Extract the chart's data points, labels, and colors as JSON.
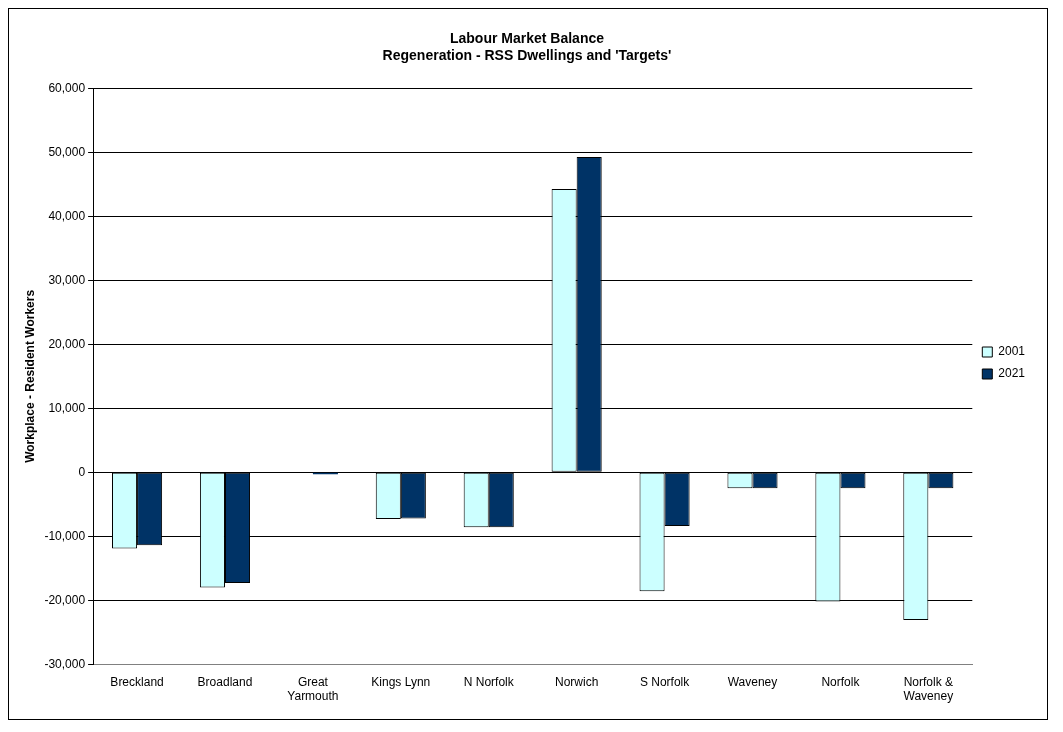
{
  "chart_data": {
    "type": "bar",
    "title": "Labour Market Balance",
    "subtitle": "Regeneration - RSS Dwellings and 'Targets'",
    "ylabel": "Workplace - Resident Workers",
    "categories": [
      "Breckland",
      "Broadland",
      "Great Yarmouth",
      "Kings Lynn",
      "N Norfolk",
      "Norwich",
      "S Norfolk",
      "Waveney",
      "Norfolk",
      "Norfolk & Waveney"
    ],
    "series": [
      {
        "name": "2001",
        "color": "#ccffff",
        "values": [
          -11900,
          -18000,
          null,
          -7300,
          -8600,
          44300,
          -18600,
          -2500,
          -20200,
          -23100
        ]
      },
      {
        "name": "2021",
        "color": "#003366",
        "values": [
          -11400,
          -17300,
          -300,
          -7200,
          -8600,
          49300,
          -8400,
          -2500,
          -2500,
          -2500
        ]
      }
    ],
    "ylim": [
      -30000,
      60000
    ],
    "yticks": [
      {
        "value": -30000,
        "label": "-30,000"
      },
      {
        "value": -20000,
        "label": "-20,000"
      },
      {
        "value": -10000,
        "label": "-10,000"
      },
      {
        "value": 0,
        "label": "0"
      },
      {
        "value": 10000,
        "label": "10,000"
      },
      {
        "value": 20000,
        "label": "20,000"
      },
      {
        "value": 30000,
        "label": "30,000"
      },
      {
        "value": 40000,
        "label": "40,000"
      },
      {
        "value": 50000,
        "label": "50,000"
      },
      {
        "value": 60000,
        "label": "60,000"
      }
    ],
    "grid": "y",
    "legend": "right"
  }
}
